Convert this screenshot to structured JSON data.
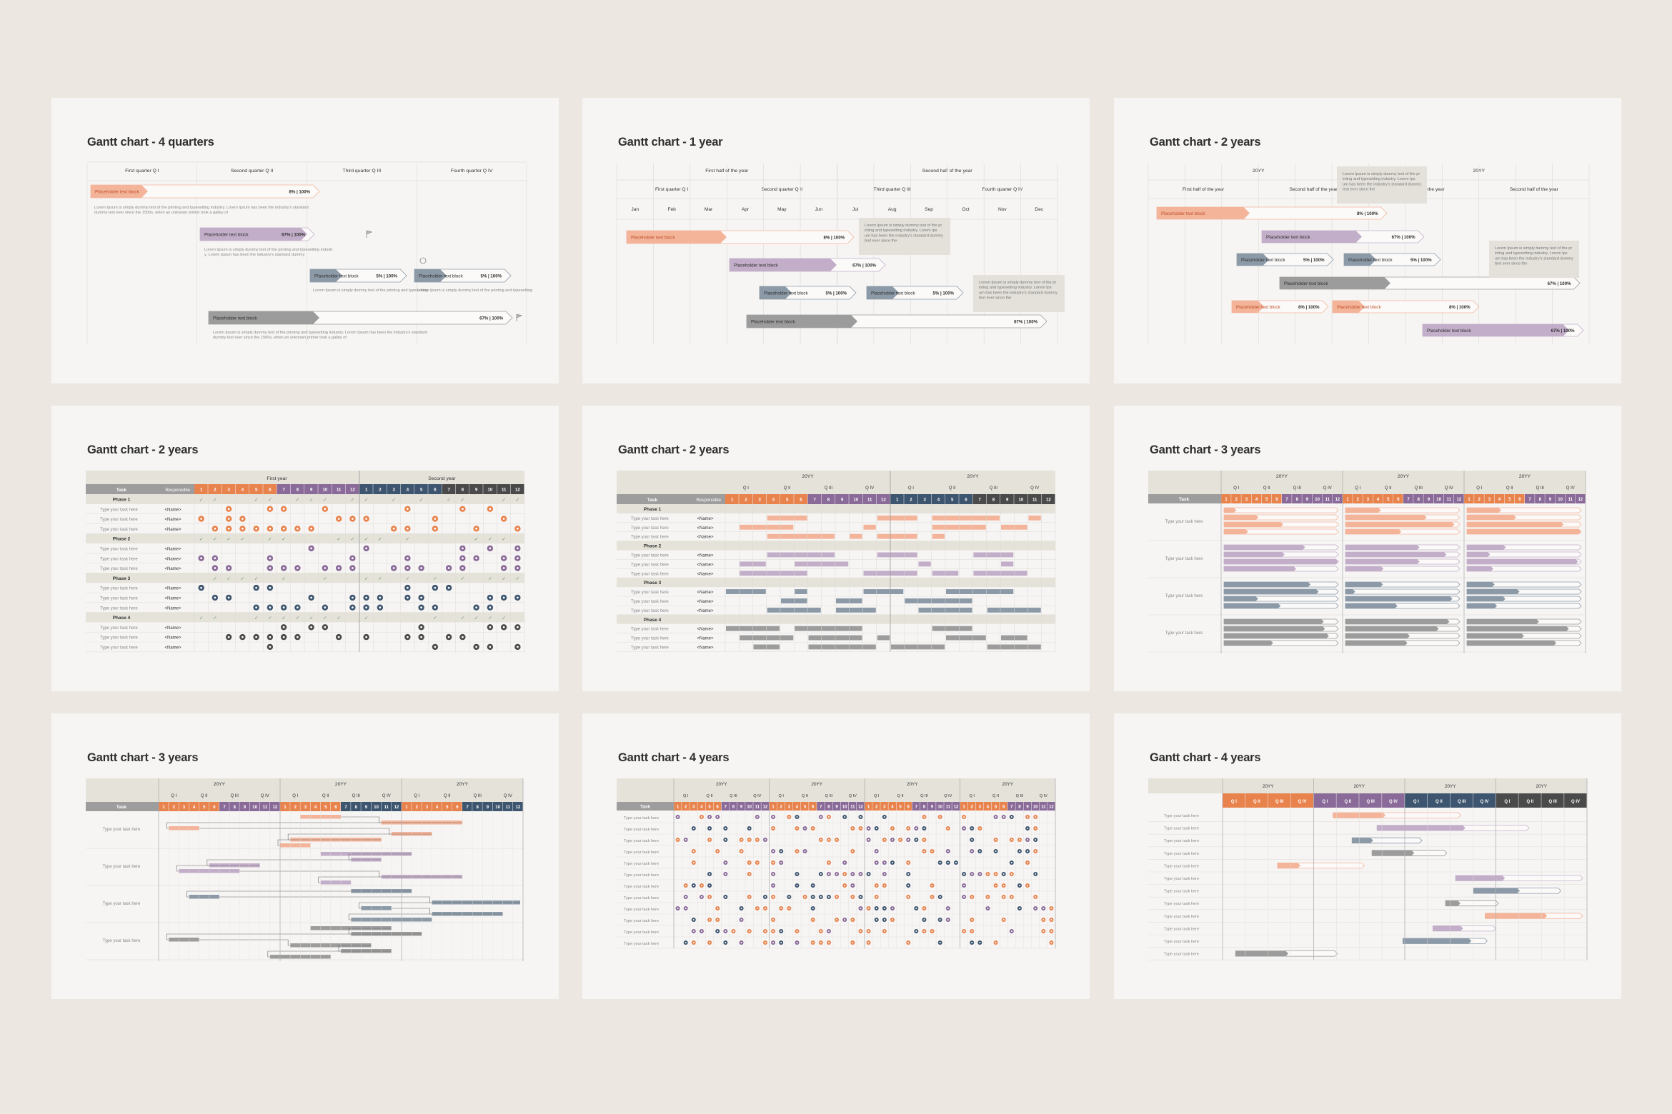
{
  "colors": {
    "orange": "#e8834d",
    "orange_light": "#f3b49a",
    "purple": "#8a6a98",
    "purple_light": "#c3aec9",
    "navy": "#3d556e",
    "slate": "#8c9aa8",
    "gray": "#9c9c9c",
    "dark": "#4a4a4a",
    "header_bg": "#e4e2d9",
    "panel_bg": "#f6f5f4"
  },
  "slides": [
    {
      "title": "Gantt chart - 4 quarters",
      "columns": [
        "First quarter Q I",
        "Second quarter Q II",
        "Third quarter Q III",
        "Fourth quarter Q IV"
      ],
      "bars": [
        {
          "label": "Placeholder text block",
          "value": "8% | 100%",
          "color": "orange"
        },
        {
          "label": "Placeholder text block",
          "value": "67% | 100%",
          "color": "purple"
        },
        {
          "label": "Placeholder text block",
          "value": "5% | 100%",
          "color": "slate"
        },
        {
          "label": "Placeholder text block",
          "value": "5% | 100%",
          "color": "slate"
        },
        {
          "label": "Placeholder text block",
          "value": "67% | 100%",
          "color": "gray"
        }
      ],
      "notes": [
        "Lorem Ipsum is simply dummy text of the printing and typesetting industry. Lorem Ipsum has been the industry's standard dummy text ever since the 1500s, when an unknown printer took a galley of",
        "Lorem Ipsum is simply dummy text of the printing and typesetting industry. Lorem Ipsum has been the industry's standard dummy",
        "Lorem Ipsum is simply dummy text of the printing and typesetting",
        "Lorem Ipsum is simply dummy text of the printing and typesetting",
        "Lorem Ipsum is simply dummy text of the printing and typesetting industry. Lorem Ipsum has been the industry's standard dummy text ever since the 1500s, when an unknown printer took a galley of"
      ]
    },
    {
      "title": "Gantt chart - 1 year",
      "halves": [
        "First half of the year",
        "Second half of the year"
      ],
      "quarters": [
        "First quarter Q I",
        "Second quarter Q II",
        "Third quarter Q III",
        "Fourth quarter Q IV"
      ],
      "months": [
        "Jan",
        "Feb",
        "Mar",
        "Apr",
        "May",
        "Jun",
        "Jul",
        "Aug",
        "Sep",
        "Oct",
        "Nov",
        "Dec"
      ],
      "bars": [
        {
          "label": "Placeholder text block",
          "value": "8% | 100%",
          "color": "orange"
        },
        {
          "label": "Placeholder text block",
          "value": "67% | 100%",
          "color": "purple"
        },
        {
          "label": "Placeholder text block",
          "value": "5% | 100%",
          "color": "slate"
        },
        {
          "label": "Placeholder text block",
          "value": "5% | 100%",
          "color": "slate"
        },
        {
          "label": "Placeholder text block",
          "value": "67% | 100%",
          "color": "gray"
        }
      ],
      "callouts": [
        "Lorem Ipsum is simply dummy text of the printing and typesetting industry. Lorem Ipsum has been the industry's standard dummy text ever since the",
        "Lorem Ipsum is simply dummy text of the printing and typesetting industry. Lorem Ipsum has been the industry's standard dummy text ever since the"
      ]
    },
    {
      "title": "Gantt chart - 2 years",
      "years": [
        "20YY",
        "20YY"
      ],
      "halves": [
        "First half of the year",
        "Second half of the year",
        "First half of the year",
        "Second half of the year"
      ],
      "bars": [
        {
          "label": "Placeholder text block",
          "value": "8% | 100%",
          "color": "orange"
        },
        {
          "label": "Placeholder text block",
          "value": "67% | 100%",
          "color": "purple"
        },
        {
          "label": "Placeholder text block",
          "value": "5% | 100%",
          "color": "slate"
        },
        {
          "label": "Placeholder text block",
          "value": "5% | 100%",
          "color": "slate"
        },
        {
          "label": "Placeholder text block",
          "value": "67% | 100%",
          "color": "gray"
        },
        {
          "label": "Placeholder text block",
          "value": "8% | 100%",
          "color": "orange"
        },
        {
          "label": "Placeholder text block",
          "value": "8% | 100%",
          "color": "orange"
        },
        {
          "label": "Placeholder text block",
          "value": "67% | 100%",
          "color": "purple"
        }
      ],
      "callouts": [
        "Lorem Ipsum is simply dummy text of the printing and typesetting industry. Lorem Ipsum has been the industry's standard dummy text ever since the",
        "Lorem Ipsum is simply dummy text of the printing and typesetting industry. Lorem Ipsum has been the industry's standard dummy text ever since the"
      ]
    },
    {
      "title": "Gantt chart - 2 years",
      "task_header": "Task",
      "responsible_header": "Responsible",
      "years": [
        "First year",
        "Second year"
      ],
      "months": [
        "1",
        "2",
        "3",
        "4",
        "5",
        "6",
        "7",
        "8",
        "9",
        "10",
        "11",
        "12"
      ],
      "phases": [
        "Phase 1",
        "Phase 2",
        "Phase 3",
        "Phase 4"
      ],
      "task_label": "Type your task here",
      "name_label": "<Name>"
    },
    {
      "title": "Gantt chart - 2 years",
      "task_header": "Task",
      "responsible_header": "Responsible",
      "years": [
        "20YY",
        "20YY"
      ],
      "quarters": [
        "Q I",
        "Q II",
        "Q III",
        "Q IV"
      ],
      "months": [
        "1",
        "2",
        "3",
        "4",
        "5",
        "6",
        "7",
        "8",
        "9",
        "10",
        "11",
        "12"
      ],
      "phases": [
        "Phase 1",
        "Phase 2",
        "Phase 3",
        "Phase 4"
      ],
      "task_label": "Type your task here",
      "name_label": "<Name>"
    },
    {
      "title": "Gantt chart - 3 years",
      "task_header": "Task",
      "years": [
        "20YY",
        "20YY",
        "20YY"
      ],
      "quarters": [
        "Q I",
        "Q II",
        "Q III",
        "Q IV"
      ],
      "months": [
        "1",
        "2",
        "3",
        "4",
        "5",
        "6",
        "7",
        "8",
        "9",
        "10",
        "11",
        "12"
      ],
      "task_label": "Type your task here"
    },
    {
      "title": "Gantt chart - 3 years",
      "task_header": "Task",
      "years": [
        "20YY",
        "20YY",
        "20YY"
      ],
      "quarters": [
        "Q I",
        "Q II",
        "Q III",
        "Q IV"
      ],
      "months": [
        "1",
        "2",
        "3",
        "4",
        "5",
        "6",
        "7",
        "8",
        "9",
        "10",
        "11",
        "12"
      ],
      "task_label": "Type your task here"
    },
    {
      "title": "Gantt chart - 4 years",
      "task_header": "Task",
      "years": [
        "20YY",
        "20YY",
        "20YY",
        "20YY"
      ],
      "quarters": [
        "Q I",
        "Q II",
        "Q III",
        "Q IV"
      ],
      "months": [
        "1",
        "2",
        "3",
        "4",
        "5",
        "6",
        "7",
        "8",
        "9",
        "10",
        "11",
        "12"
      ],
      "task_label": "Type your task here"
    },
    {
      "title": "Gantt chart - 4 years",
      "years": [
        "20YY",
        "20YY",
        "20YY",
        "20YY"
      ],
      "quarters": [
        "Q I",
        "Q II",
        "Q III",
        "Q IV"
      ],
      "task_label": "Type your task here"
    }
  ]
}
